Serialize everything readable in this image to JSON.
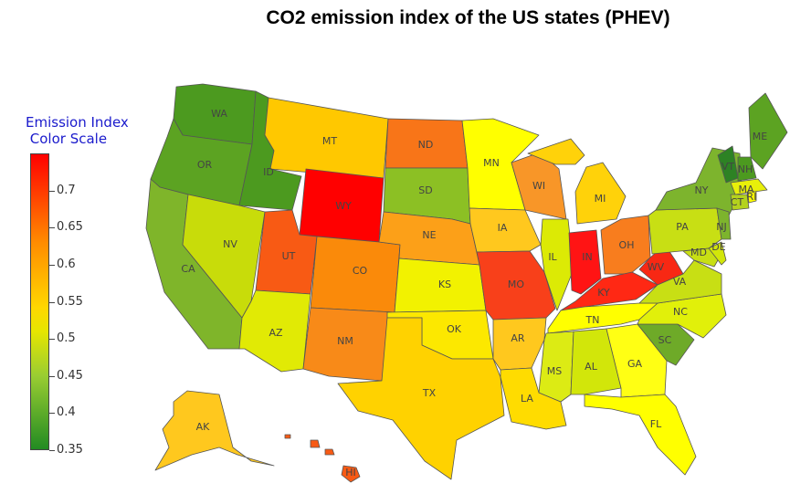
{
  "title": "CO2 emission index of the US states (PHEV)",
  "legend": {
    "title": "Emission Index\n Color Scale",
    "ticks": [
      "0.7",
      "0.65",
      "0.6",
      "0.55",
      "0.5",
      "0.45",
      "0.4",
      "0.35"
    ],
    "tick_values": [
      0.7,
      0.65,
      0.6,
      0.55,
      0.5,
      0.45,
      0.4,
      0.35
    ],
    "range": [
      0.35,
      0.75
    ],
    "colors": {
      "low": "#228b22",
      "mid": "#e6e600",
      "high": "#ff0000"
    }
  },
  "states": [
    {
      "id": "WA",
      "label": "WA",
      "color": "#4c9a1f"
    },
    {
      "id": "OR",
      "label": "OR",
      "color": "#5ca322"
    },
    {
      "id": "CA",
      "label": "CA",
      "color": "#7fb52a"
    },
    {
      "id": "ID",
      "label": "ID",
      "color": "#4c9a1f"
    },
    {
      "id": "NV",
      "label": "NV",
      "color": "#c8dc0a"
    },
    {
      "id": "MT",
      "label": "MT",
      "color": "#ffc800"
    },
    {
      "id": "WY",
      "label": "WY",
      "color": "#ff0000"
    },
    {
      "id": "UT",
      "label": "UT",
      "color": "#f85a14"
    },
    {
      "id": "AZ",
      "label": "AZ",
      "color": "#e1ea05"
    },
    {
      "id": "CO",
      "label": "CO",
      "color": "#fa8a0a"
    },
    {
      "id": "NM",
      "label": "NM",
      "color": "#f88a18"
    },
    {
      "id": "ND",
      "label": "ND",
      "color": "#f87518"
    },
    {
      "id": "SD",
      "label": "SD",
      "color": "#8cc024"
    },
    {
      "id": "NE",
      "label": "NE",
      "color": "#fca018"
    },
    {
      "id": "KS",
      "label": "KS",
      "color": "#f2f200"
    },
    {
      "id": "OK",
      "label": "OK",
      "color": "#fce800"
    },
    {
      "id": "TX",
      "label": "TX",
      "color": "#ffd200"
    },
    {
      "id": "MN",
      "label": "MN",
      "color": "#ffff00"
    },
    {
      "id": "IA",
      "label": "IA",
      "color": "#ffc81e"
    },
    {
      "id": "MO",
      "label": "MO",
      "color": "#f8401a"
    },
    {
      "id": "AR",
      "label": "AR",
      "color": "#ffc81e"
    },
    {
      "id": "LA",
      "label": "LA",
      "color": "#ffdc00"
    },
    {
      "id": "WI",
      "label": "WI",
      "color": "#f89628"
    },
    {
      "id": "IL",
      "label": "IL",
      "color": "#dcea05"
    },
    {
      "id": "IN",
      "label": "IN",
      "color": "#ff1414"
    },
    {
      "id": "MI",
      "label": "MI",
      "color": "#ffd20a"
    },
    {
      "id": "OH",
      "label": "OH",
      "color": "#f87d1e"
    },
    {
      "id": "KY",
      "label": "KY",
      "color": "#ff2814"
    },
    {
      "id": "TN",
      "label": "TN",
      "color": "#ffff00"
    },
    {
      "id": "MS",
      "label": "MS",
      "color": "#dceb14"
    },
    {
      "id": "AL",
      "label": "AL",
      "color": "#d2e60a"
    },
    {
      "id": "GA",
      "label": "GA",
      "color": "#ffff14"
    },
    {
      "id": "FL",
      "label": "FL",
      "color": "#ffff00"
    },
    {
      "id": "SC",
      "label": "SC",
      "color": "#6eaa28"
    },
    {
      "id": "NC",
      "label": "NC",
      "color": "#e1f00a"
    },
    {
      "id": "VA",
      "label": "VA",
      "color": "#c8df14"
    },
    {
      "id": "WV",
      "label": "WV",
      "color": "#f82814"
    },
    {
      "id": "PA",
      "label": "PA",
      "color": "#c8df14"
    },
    {
      "id": "NY",
      "label": "NY",
      "color": "#7db42d"
    },
    {
      "id": "ME",
      "label": "ME",
      "color": "#5ca322"
    },
    {
      "id": "VT",
      "label": "VT",
      "color": "#2d8224"
    },
    {
      "id": "NH",
      "label": "NH",
      "color": "#4c9a1f"
    },
    {
      "id": "MA",
      "label": "MA",
      "color": "#e8ef0a"
    },
    {
      "id": "CT",
      "label": "CT",
      "color": "#b4d21e"
    },
    {
      "id": "RI",
      "label": "RI",
      "color": "#ffff00"
    },
    {
      "id": "NJ",
      "label": "NJ",
      "color": "#7db42d"
    },
    {
      "id": "MD",
      "label": "MD",
      "color": "#c8df14"
    },
    {
      "id": "DE",
      "label": "DE",
      "color": "#d2e60a"
    },
    {
      "id": "AK",
      "label": "AK",
      "color": "#ffc81e"
    },
    {
      "id": "HI",
      "label": "HI",
      "color": "#f85a14"
    }
  ]
}
